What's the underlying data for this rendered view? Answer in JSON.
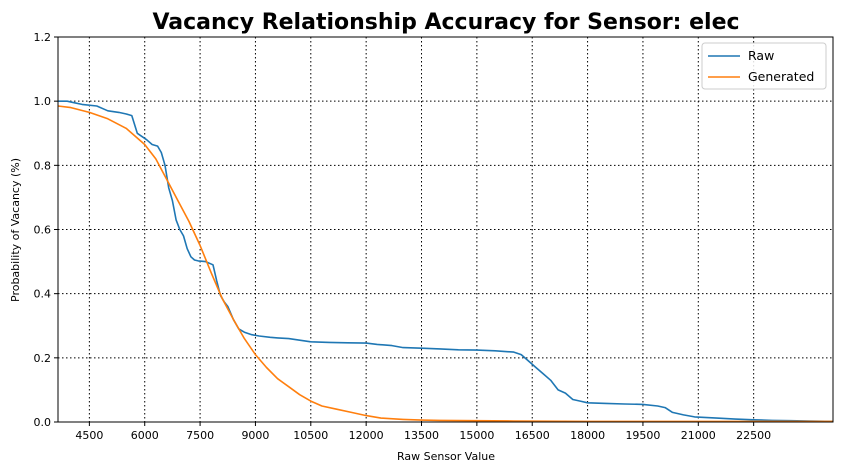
{
  "chart_data": {
    "type": "line",
    "title": "Vacancy Relationship Accuracy for Sensor: elec",
    "xlabel": "Raw Sensor Value",
    "ylabel": "Probability of Vacancy (%)",
    "xlim": [
      3650,
      24650
    ],
    "ylim": [
      0.0,
      1.2
    ],
    "xticks": [
      4500,
      6000,
      7500,
      9000,
      10500,
      12000,
      13500,
      15000,
      16500,
      18000,
      19500,
      21000,
      22500
    ],
    "yticks": [
      0.0,
      0.2,
      0.4,
      0.6,
      0.8,
      1.0,
      1.2
    ],
    "xtick_labels": [
      "4500",
      "6000",
      "7500",
      "9000",
      "10500",
      "12000",
      "13500",
      "15000",
      "16500",
      "18000",
      "19500",
      "21000",
      "22500"
    ],
    "ytick_labels": [
      "0.0",
      "0.2",
      "0.4",
      "0.6",
      "0.8",
      "1.0",
      "1.2"
    ],
    "grid": true,
    "grid_style": "dotted",
    "legend_position": "top-right",
    "series": [
      {
        "name": "Raw",
        "color": "#1f77b4",
        "x": [
          3650,
          3900,
          4100,
          4300,
          4700,
          4900,
          5000,
          5300,
          5500,
          5650,
          5800,
          6050,
          6200,
          6350,
          6450,
          6550,
          6650,
          6750,
          6850,
          6950,
          7050,
          7150,
          7250,
          7350,
          7450,
          7650,
          7850,
          7950,
          8050,
          8150,
          8250,
          8400,
          8550,
          8700,
          8900,
          9100,
          9400,
          9600,
          9900,
          10200,
          10500,
          11000,
          11500,
          12000,
          12300,
          12700,
          13000,
          13500,
          14000,
          14500,
          15000,
          15500,
          16000,
          16200,
          16400,
          16600,
          16800,
          17000,
          17200,
          17400,
          17600,
          17800,
          18000,
          18500,
          19000,
          19500,
          19900,
          20100,
          20300,
          20600,
          20900,
          21500,
          22000,
          22500,
          23000,
          23500,
          24000,
          24650
        ],
        "y": [
          1.0,
          1.0,
          0.995,
          0.99,
          0.985,
          0.975,
          0.97,
          0.965,
          0.96,
          0.955,
          0.9,
          0.88,
          0.865,
          0.86,
          0.84,
          0.8,
          0.73,
          0.69,
          0.63,
          0.6,
          0.58,
          0.54,
          0.515,
          0.505,
          0.502,
          0.5,
          0.49,
          0.44,
          0.395,
          0.375,
          0.36,
          0.32,
          0.29,
          0.28,
          0.272,
          0.268,
          0.264,
          0.262,
          0.26,
          0.255,
          0.25,
          0.248,
          0.247,
          0.246,
          0.242,
          0.238,
          0.232,
          0.23,
          0.228,
          0.225,
          0.224,
          0.222,
          0.218,
          0.21,
          0.19,
          0.17,
          0.15,
          0.13,
          0.1,
          0.09,
          0.07,
          0.065,
          0.06,
          0.058,
          0.056,
          0.055,
          0.05,
          0.045,
          0.03,
          0.022,
          0.016,
          0.012,
          0.009,
          0.007,
          0.005,
          0.004,
          0.003,
          0.002
        ]
      },
      {
        "name": "Generated",
        "color": "#ff7f0e",
        "x": [
          3650,
          4000,
          4500,
          5000,
          5500,
          6000,
          6300,
          6600,
          6900,
          7200,
          7500,
          7800,
          8100,
          8400,
          8700,
          9000,
          9300,
          9600,
          9900,
          10200,
          10500,
          10800,
          11200,
          11600,
          12000,
          12400,
          13000,
          13500,
          14000,
          15000,
          16000,
          18000,
          20000,
          22000,
          24650
        ],
        "y": [
          0.985,
          0.98,
          0.965,
          0.945,
          0.915,
          0.865,
          0.82,
          0.755,
          0.69,
          0.625,
          0.55,
          0.465,
          0.385,
          0.32,
          0.26,
          0.21,
          0.17,
          0.135,
          0.11,
          0.085,
          0.065,
          0.05,
          0.04,
          0.03,
          0.02,
          0.012,
          0.008,
          0.006,
          0.005,
          0.004,
          0.003,
          0.002,
          0.002,
          0.002,
          0.002
        ]
      }
    ]
  }
}
